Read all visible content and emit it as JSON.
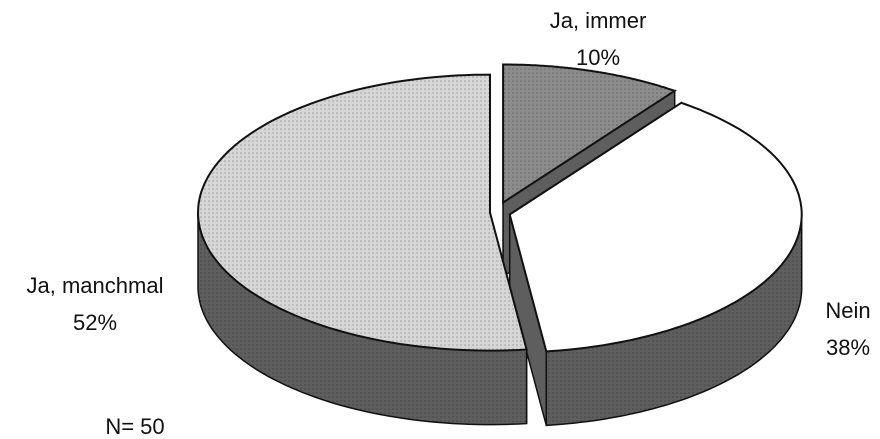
{
  "chart_data": {
    "type": "pie",
    "categories": [
      "Ja, immer",
      "Nein",
      "Ja, manchmal"
    ],
    "values": [
      10,
      38,
      52
    ],
    "value_labels": [
      "10%",
      "38%",
      "52%"
    ],
    "colors": [
      "#8c8c8c",
      "#ffffff",
      "#d6d6d6"
    ],
    "annotation": "N= 50"
  }
}
